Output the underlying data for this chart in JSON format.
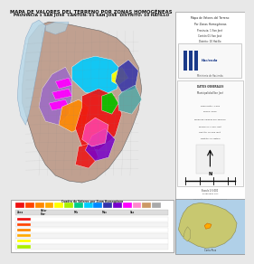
{
  "title_line1": "MAPA DE VALORES DEL TERRENO POR ZONAS HOMOGÉNEAS",
  "title_line2": "PROVINCIA 1 SAN JOSE  CANTÓN: 01 SAN JOSE  DISTRITO: 10 HATILLO",
  "bg_color": "#e8e8e8",
  "map_bg": "#c8c8c8",
  "outer_bg": "#b8b8b8",
  "sidebar_bg": "#ffffff",
  "water_color": "#b8d8e8",
  "terrain_color": "#c0a090",
  "terrain_light": "#d4b8a8",
  "zone_colors": {
    "cyan": "#00ccff",
    "purple": "#9966cc",
    "magenta": "#ff00ff",
    "hot_pink": "#ff44aa",
    "orange": "#ff8800",
    "red": "#ee1111",
    "green": "#00cc00",
    "yellow": "#ffff00",
    "dark_blue": "#3333aa",
    "teal": "#44aaaa",
    "violet": "#7700cc",
    "light_blue": "#88bbee",
    "gray_zone": "#888888"
  },
  "legend_colors": [
    "#ee1111",
    "#ff8800",
    "#ffff00",
    "#44aa44",
    "#00ccff",
    "#3333aa",
    "#7700cc",
    "#ff00ff",
    "#ff88cc",
    "#aaaaaa",
    "#cc9966",
    "#ff44aa",
    "#88bbee"
  ],
  "table_colors": [
    "#ee1111",
    "#ff4400",
    "#ff8800",
    "#ffaa00",
    "#ffff00",
    "#aaee00",
    "#00cc88",
    "#00ccff",
    "#0088ff",
    "#3333aa",
    "#7700cc",
    "#ff00ff",
    "#ff88cc",
    "#cc9966",
    "#aaaaaa"
  ],
  "mh_blue": "#1a3a8a",
  "mh_red": "#cc2222",
  "white": "#ffffff",
  "black": "#111111",
  "light_gray": "#f0f0f0",
  "border_gray": "#888888",
  "costa_rica_land": "#c8c870",
  "costa_rica_sea": "#b0d0e8"
}
